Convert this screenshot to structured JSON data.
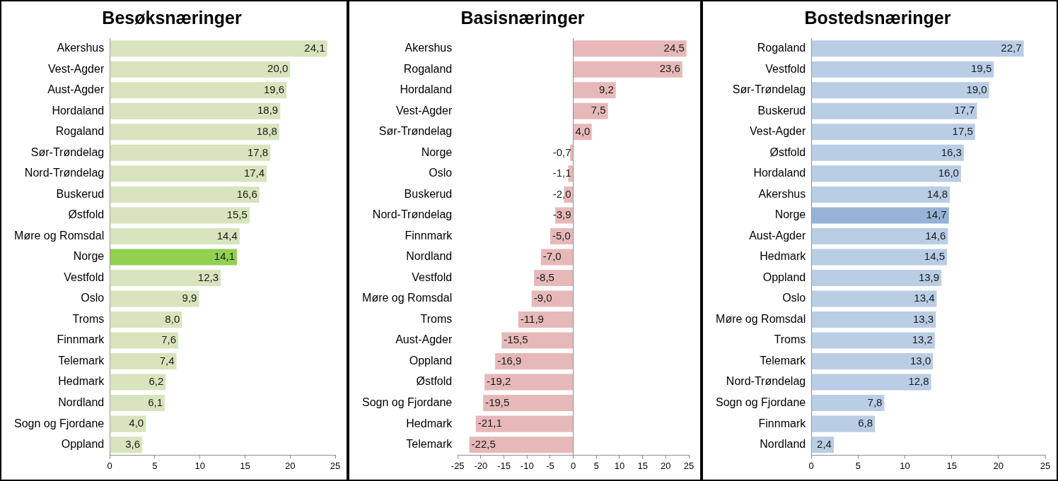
{
  "chart_data": [
    {
      "type": "bar",
      "orientation": "horizontal",
      "title": "Besøksnæringer",
      "categories": [
        "Akershus",
        "Vest-Agder",
        "Aust-Agder",
        "Hordaland",
        "Rogaland",
        "Sør-Trøndelag",
        "Nord-Trøndelag",
        "Buskerud",
        "Østfold",
        "Møre og Romsdal",
        "Norge",
        "Vestfold",
        "Oslo",
        "Troms",
        "Finnmark",
        "Telemark",
        "Hedmark",
        "Nordland",
        "Sogn og Fjordane",
        "Oppland"
      ],
      "values": [
        24.1,
        20.0,
        19.6,
        18.9,
        18.8,
        17.8,
        17.4,
        16.6,
        15.5,
        14.4,
        14.1,
        12.3,
        9.9,
        8.0,
        7.6,
        7.4,
        6.2,
        6.1,
        4.0,
        3.6
      ],
      "value_labels": [
        "24,1",
        "20,0",
        "19,6",
        "18,9",
        "18,8",
        "17,8",
        "17,4",
        "16,6",
        "15,5",
        "14,4",
        "14,1",
        "12,3",
        "9,9",
        "8,0",
        "7,6",
        "7,4",
        "6,2",
        "6,1",
        "4,0",
        "3,6"
      ],
      "colors": [
        "#d7e4bd",
        "#d7e4bd",
        "#d7e4bd",
        "#d7e4bd",
        "#d7e4bd",
        "#d7e4bd",
        "#d7e4bd",
        "#d7e4bd",
        "#d7e4bd",
        "#d7e4bd",
        "#92d050",
        "#d7e4bd",
        "#d7e4bd",
        "#d7e4bd",
        "#d7e4bd",
        "#d7e4bd",
        "#d7e4bd",
        "#d7e4bd",
        "#d7e4bd",
        "#d7e4bd"
      ],
      "xlim": [
        0,
        25
      ],
      "xticks": [
        0,
        5,
        10,
        15,
        20,
        25
      ],
      "grid": false,
      "data_labels": true
    },
    {
      "type": "bar",
      "orientation": "horizontal",
      "title": "Basisnæringer",
      "categories": [
        "Akershus",
        "Rogaland",
        "Hordaland",
        "Vest-Agder",
        "Sør-Trøndelag",
        "Norge",
        "Oslo",
        "Buskerud",
        "Nord-Trøndelag",
        "Finnmark",
        "Nordland",
        "Vestfold",
        "Møre og Romsdal",
        "Troms",
        "Aust-Agder",
        "Oppland",
        "Østfold",
        "Sogn og Fjordane",
        "Hedmark",
        "Telemark"
      ],
      "values": [
        24.5,
        23.6,
        9.2,
        7.5,
        4.0,
        -0.7,
        -1.1,
        -2.0,
        -3.9,
        -5.0,
        -7.0,
        -8.5,
        -9.0,
        -11.9,
        -15.5,
        -16.9,
        -19.2,
        -19.5,
        -21.1,
        -22.5
      ],
      "value_labels": [
        "24,5",
        "23,6",
        "9,2",
        "7,5",
        "4,0",
        "-0,7",
        "-1,1",
        "-2,0",
        "-3,9",
        "-5,0",
        "-7,0",
        "-8,5",
        "-9,0",
        "-11,9",
        "-15,5",
        "-16,9",
        "-19,2",
        "-19,5",
        "-21,1",
        "-22,5"
      ],
      "color": "#e6b9b8",
      "xlim": [
        -25,
        25
      ],
      "xticks": [
        -25,
        -20,
        -15,
        -10,
        -5,
        0,
        5,
        10,
        15,
        20,
        25
      ],
      "grid": false,
      "data_labels": true
    },
    {
      "type": "bar",
      "orientation": "horizontal",
      "title": "Bostedsnæringer",
      "categories": [
        "Rogaland",
        "Vestfold",
        "Sør-Trøndelag",
        "Buskerud",
        "Vest-Agder",
        "Østfold",
        "Hordaland",
        "Akershus",
        "Norge",
        "Aust-Agder",
        "Hedmark",
        "Oppland",
        "Oslo",
        "Møre og Romsdal",
        "Troms",
        "Telemark",
        "Nord-Trøndelag",
        "Sogn og Fjordane",
        "Finnmark",
        "Nordland"
      ],
      "values": [
        22.7,
        19.5,
        19.0,
        17.7,
        17.5,
        16.3,
        16.0,
        14.8,
        14.7,
        14.6,
        14.5,
        13.9,
        13.4,
        13.3,
        13.2,
        13.0,
        12.8,
        7.8,
        6.8,
        2.4
      ],
      "value_labels": [
        "22,7",
        "19,5",
        "19,0",
        "17,7",
        "17,5",
        "16,3",
        "16,0",
        "14,8",
        "14,7",
        "14,6",
        "14,5",
        "13,9",
        "13,4",
        "13,3",
        "13,2",
        "13,0",
        "12,8",
        "7,8",
        "6,8",
        "2,4"
      ],
      "colors": [
        "#b9cde5",
        "#b9cde5",
        "#b9cde5",
        "#b9cde5",
        "#b9cde5",
        "#b9cde5",
        "#b9cde5",
        "#b9cde5",
        "#95b3d7",
        "#b9cde5",
        "#b9cde5",
        "#b9cde5",
        "#b9cde5",
        "#b9cde5",
        "#b9cde5",
        "#b9cde5",
        "#b9cde5",
        "#b9cde5",
        "#b9cde5",
        "#b9cde5"
      ],
      "xlim": [
        0,
        25
      ],
      "xticks": [
        0,
        5,
        10,
        15,
        20,
        25
      ],
      "grid": false,
      "data_labels": true
    }
  ]
}
